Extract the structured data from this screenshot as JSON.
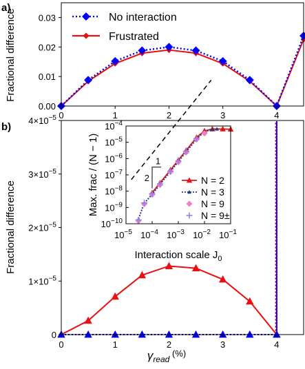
{
  "chart_data": [
    {
      "panel_label": "a)",
      "type": "line",
      "xlabel": "",
      "ylabel": "Fractional difference",
      "xlim": [
        0,
        4.5
      ],
      "ylim": [
        0,
        0.035
      ],
      "x_ticks": [
        "0",
        "1",
        "2",
        "3",
        "4"
      ],
      "y_ticks": [
        "0.00",
        "0.01",
        "0.02",
        "0.03"
      ],
      "legend_position": "top-center",
      "series": [
        {
          "name": "No interaction",
          "color": "#0000ff",
          "linestyle": "dotted",
          "marker": "diamond",
          "x": [
            0,
            0.5,
            1,
            1.5,
            2,
            2.5,
            3,
            3.5,
            4,
            4.5
          ],
          "y": [
            0.0,
            0.0088,
            0.0152,
            0.0188,
            0.02,
            0.0188,
            0.0152,
            0.0088,
            0.0,
            0.0238
          ]
        },
        {
          "name": "Frustrated",
          "color": "#e81010",
          "linestyle": "solid",
          "marker": "diamond",
          "x": [
            0,
            0.5,
            1,
            1.5,
            2,
            2.5,
            3,
            3.5,
            4,
            4.5
          ],
          "y": [
            0.0,
            0.0084,
            0.0144,
            0.0179,
            0.019,
            0.0179,
            0.0144,
            0.0084,
            0.0,
            0.0226
          ]
        }
      ]
    },
    {
      "panel_label": "b)",
      "type": "line",
      "xlabel_main": "γ",
      "xlabel_sub": "read",
      "xlabel_unit": " (%)",
      "ylabel": "Fractional difference",
      "xlim": [
        0,
        4.5
      ],
      "ylim": [
        0,
        4e-05
      ],
      "x_ticks": [
        "0",
        "1",
        "2",
        "3",
        "4"
      ],
      "y_ticks": [
        {
          "value": 0,
          "label": "0",
          "exp": ""
        },
        {
          "value": 1e-05,
          "label": "1×10",
          "exp": "−5"
        },
        {
          "value": 2e-05,
          "label": "2×10",
          "exp": "−5"
        },
        {
          "value": 3e-05,
          "label": "3×10",
          "exp": "−5"
        },
        {
          "value": 4e-05,
          "label": "4×10",
          "exp": "−5"
        }
      ],
      "series": [
        {
          "color": "#e81010",
          "linestyle": "solid",
          "marker": "triangle",
          "x": [
            0,
            0.5,
            1,
            1.5,
            2,
            2.5,
            3,
            3.5,
            4
          ],
          "y": [
            0,
            2.6e-06,
            7.1e-06,
            1.11e-05,
            1.28e-05,
            1.24e-05,
            1.03e-05,
            6.2e-06,
            0
          ]
        },
        {
          "color": "#0000ff",
          "linestyle": "dotted",
          "marker": "triangle",
          "x": [
            0,
            0.5,
            1,
            1.5,
            2,
            2.5,
            3,
            3.5,
            4
          ],
          "y": [
            0,
            0,
            0,
            0,
            0,
            0,
            0,
            0,
            0
          ]
        }
      ],
      "spikes_at_x": [
        4
      ]
    },
    {
      "panel_label": "inset",
      "type": "scatter",
      "xscale": "log",
      "yscale": "log",
      "xlabel": "Interaction scale J",
      "xlabel_sub": "0",
      "ylabel": "Max. frac / (N − 1)",
      "xlim": [
        1e-05,
        0.1
      ],
      "ylim": [
        1e-10,
        0.0001
      ],
      "x_tick_exps": [
        "−5",
        "−4",
        "−3",
        "−2",
        "−1"
      ],
      "y_tick_exps": [
        "−10",
        "−9",
        "−8",
        "−7",
        "−6",
        "−5",
        "−4"
      ],
      "slope_triangle": {
        "run_label": "1",
        "rise_label": "2"
      },
      "reference_line": {
        "slope": 2,
        "style": "dashed",
        "color": "#000000"
      },
      "legend_position": "lower-right",
      "series": [
        {
          "name": "N = 2",
          "color": "#e81010",
          "marker": "triangle",
          "connected": true,
          "x": [
            0.0001,
            0.0002,
            0.0005,
            0.001,
            0.002,
            0.005,
            0.01,
            0.02,
            0.05,
            0.1
          ],
          "y": [
            8e-09,
            3.2e-08,
            2e-07,
            8e-07,
            3.2e-06,
            2e-05,
            5e-05,
            6.5e-05,
            6.5e-05,
            6.3e-05
          ]
        },
        {
          "name": "N = 3",
          "color": "#1a3a8a",
          "marker": "triangle",
          "linestyle": "dotted",
          "connected": true,
          "x": [
            3e-05,
            5e-05,
            0.0001,
            0.0002,
            0.0005,
            0.001,
            0.002,
            0.005,
            0.01,
            0.02,
            0.03
          ],
          "y": [
            2e-10,
            1.8e-09,
            6.5e-09,
            2.6e-08,
            1.6e-07,
            6.5e-07,
            2.6e-06,
            1.6e-05,
            4.5e-05,
            6e-05,
            6.5e-05
          ]
        },
        {
          "name": "N = 9",
          "color": "#ee82c8",
          "marker": "diamond",
          "connected": false,
          "x": [
            3e-05,
            5e-05,
            0.0001,
            0.0002,
            0.0005,
            0.001,
            0.002,
            0.005,
            0.01
          ],
          "y": [
            1.5e-10,
            1.6e-09,
            6e-09,
            2.4e-08,
            1.5e-07,
            6e-07,
            2.4e-06,
            1.5e-05,
            3.5e-05
          ]
        },
        {
          "name": "N = 9±",
          "color": "#8a7cf0",
          "marker": "plus",
          "connected": false,
          "x": [
            3e-05,
            5e-05,
            0.0001,
            0.0002,
            0.0005,
            0.001,
            0.002,
            0.005
          ],
          "y": [
            1.7e-10,
            1.9e-09,
            7e-09,
            2.8e-08,
            1.7e-07,
            7e-07,
            2.8e-06,
            1.7e-05
          ]
        }
      ]
    }
  ]
}
